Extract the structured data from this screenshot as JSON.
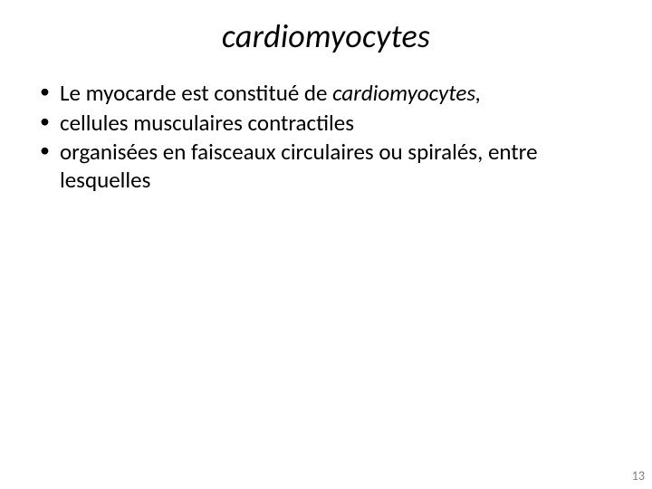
{
  "title": "cardiomyocytes",
  "bullets": [
    {
      "plain": "Le myocarde est constitué de ",
      "italic": "cardiomyocytes,"
    },
    {
      "plain": "cellules musculaires contractiles",
      "italic": ""
    },
    {
      "plain": "organisées en faisceaux circulaires ou spiralés, entre lesquelles",
      "italic": ""
    }
  ],
  "pageNumber": "13",
  "colors": {
    "background": "#ffffff",
    "text": "#000000",
    "pageNum": "#7f7f7f"
  },
  "fonts": {
    "titleSize": 36,
    "bodySize": 25,
    "pageNumSize": 14,
    "family": "Calibri"
  }
}
